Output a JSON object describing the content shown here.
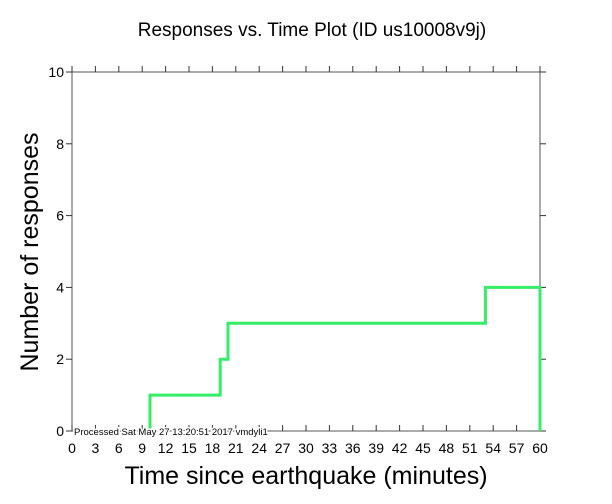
{
  "chart_data": {
    "type": "line",
    "style": "step",
    "title": "Responses vs. Time Plot (ID us10008v9j)",
    "xlabel": "Time since earthquake (minutes)",
    "ylabel": "Number of responses",
    "xlim": [
      0,
      60
    ],
    "ylim": [
      0,
      10
    ],
    "xticks": [
      0,
      3,
      6,
      9,
      12,
      15,
      18,
      21,
      24,
      27,
      30,
      33,
      36,
      39,
      42,
      45,
      48,
      51,
      54,
      57,
      60
    ],
    "yticks": [
      0,
      2,
      4,
      6,
      8,
      10
    ],
    "grid": false,
    "series": [
      {
        "name": "responses",
        "color": "#33ee66",
        "x": [
          10,
          10,
          19,
          19,
          20,
          20,
          53,
          53,
          60,
          60
        ],
        "y": [
          0,
          1,
          1,
          2,
          2,
          3,
          3,
          4,
          4,
          0
        ]
      }
    ],
    "annotation": "Processed Sat May 27 13:20:51 2017 vmdyli1"
  }
}
